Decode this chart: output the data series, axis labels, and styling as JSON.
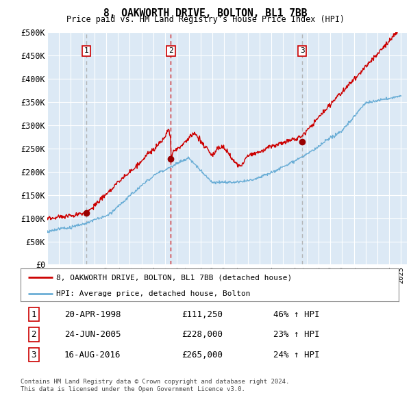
{
  "title": "8, OAKWORTH DRIVE, BOLTON, BL1 7BB",
  "subtitle": "Price paid vs. HM Land Registry's House Price Index (HPI)",
  "ylim": [
    0,
    500000
  ],
  "yticks": [
    0,
    50000,
    100000,
    150000,
    200000,
    250000,
    300000,
    350000,
    400000,
    450000,
    500000
  ],
  "ytick_labels": [
    "£0",
    "£50K",
    "£100K",
    "£150K",
    "£200K",
    "£250K",
    "£300K",
    "£350K",
    "£400K",
    "£450K",
    "£500K"
  ],
  "bg_color": "#dce9f5",
  "sale_dates": [
    1998.3,
    2005.48,
    2016.62
  ],
  "sale_prices": [
    111250,
    228000,
    265000
  ],
  "sale_labels": [
    "1",
    "2",
    "3"
  ],
  "sale_vline_colors": [
    "#aaaaaa",
    "#cc0000",
    "#aaaaaa"
  ],
  "legend_entries": [
    "8, OAKWORTH DRIVE, BOLTON, BL1 7BB (detached house)",
    "HPI: Average price, detached house, Bolton"
  ],
  "table_data": [
    [
      "1",
      "20-APR-1998",
      "£111,250",
      "46% ↑ HPI"
    ],
    [
      "2",
      "24-JUN-2005",
      "£228,000",
      "23% ↑ HPI"
    ],
    [
      "3",
      "16-AUG-2016",
      "£265,000",
      "24% ↑ HPI"
    ]
  ],
  "footer": "Contains HM Land Registry data © Crown copyright and database right 2024.\nThis data is licensed under the Open Government Licence v3.0.",
  "hpi_color": "#6baed6",
  "sale_line_color": "#cc0000"
}
